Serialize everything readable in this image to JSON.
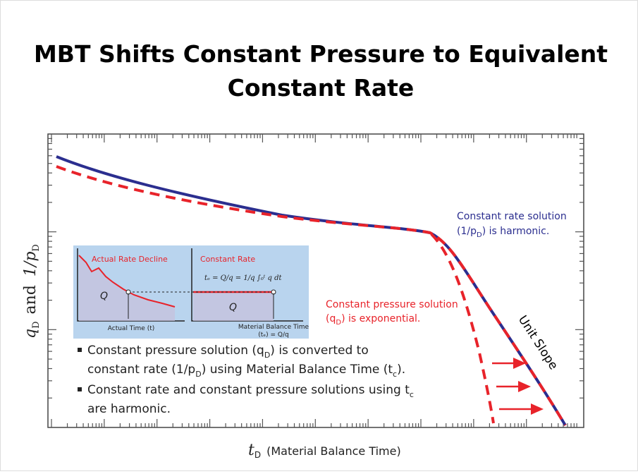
{
  "title_lines": [
    "MBT Shifts Constant Pressure to Equivalent",
    "Constant Rate"
  ],
  "plot": {
    "x_label": {
      "symbol": "t",
      "sub": "D",
      "text": "(Material Balance Time)"
    },
    "y_label": {
      "q": "q",
      "q_sub": "D",
      "and": "and",
      "p": "1/p",
      "p_sub": "D"
    },
    "rate_note": {
      "line1": "Constant rate solution",
      "pre": "(1/p",
      "sub": "D",
      "post": ") is harmonic."
    },
    "pressure_note": {
      "line1": "Constant pressure solution",
      "pre": "(q",
      "sub": "D",
      "post": ") is exponential."
    },
    "slope_note": "Unit Slope"
  },
  "inset": {
    "left_title": "Actual Rate Decline",
    "right_title": "Constant Rate",
    "left_area": "Q",
    "right_area": "Q",
    "left_axis": "Actual Time (t)",
    "right_axis_1": "Material Balance Time",
    "right_axis_2": "(tₑ) = Q/q",
    "formula": "tₑ = Q/q = 1/q ∫₀ᵗ q dt"
  },
  "bullets": [
    {
      "lines": [
        [
          "Constant pressure solution (q",
          "D",
          ") is converted to"
        ],
        [
          "constant rate (1/p",
          "D",
          ") using Material Balance Time (t",
          "c",
          ")."
        ]
      ]
    },
    {
      "lines": [
        [
          "Constant rate and constant pressure solutions using t",
          "c"
        ],
        [
          "are harmonic."
        ]
      ]
    }
  ]
}
